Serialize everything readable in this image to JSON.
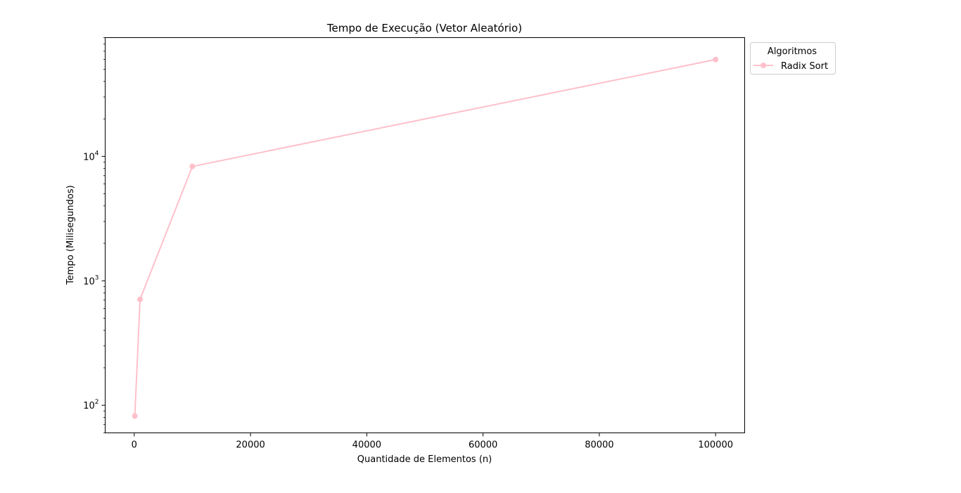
{
  "chart_data": {
    "type": "line",
    "title": "Tempo de Execução (Vetor Aleatório)",
    "xlabel": "Quantidade de Elementos (n)",
    "ylabel": "Tempo (Milisegundos)",
    "xlim": [
      -5000,
      105000
    ],
    "ylim": [
      60,
      90000
    ],
    "yscale": "log",
    "x_ticks": [
      0,
      20000,
      40000,
      60000,
      80000,
      100000
    ],
    "x_tick_labels": [
      "0",
      "20000",
      "40000",
      "60000",
      "80000",
      "100000"
    ],
    "y_ticks": [
      100,
      1000,
      10000
    ],
    "y_tick_labels": [
      {
        "base": "10",
        "exp": "2"
      },
      {
        "base": "10",
        "exp": "3"
      },
      {
        "base": "10",
        "exp": "4"
      }
    ],
    "grid": false,
    "legend": {
      "title": "Algoritmos",
      "placement": "outside upper right"
    },
    "series": [
      {
        "name": "Radix Sort",
        "color": "#ffc0cb",
        "marker": "circle",
        "x": [
          100,
          1000,
          10000,
          100000
        ],
        "y": [
          82,
          710,
          8300,
          60000
        ]
      }
    ]
  }
}
